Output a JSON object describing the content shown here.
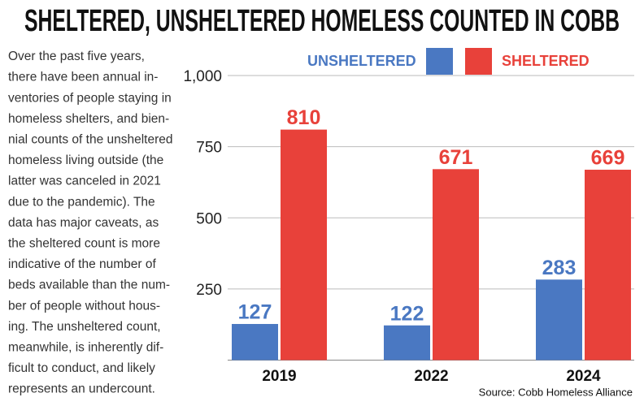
{
  "chart_data": {
    "type": "bar",
    "title": "SHELTERED, UNSHELTERED HOMELESS COUNTED IN COBB",
    "description": [
      "Over the past five years,",
      "there have been annual in-",
      "ventories of people staying in",
      "homeless shelters, and bien-",
      "nial counts of the unsheltered",
      "homeless living outside (the",
      "latter was canceled in 2021",
      "due to the pandemic). The",
      "data has major caveats, as",
      "the sheltered count is more",
      "indicative of the number of",
      "beds available than the num-",
      "ber of people without hous-",
      "ing. The unsheltered count,",
      "meanwhile, is inherently dif-",
      "ficult to conduct, and likely",
      "represents an undercount."
    ],
    "source": "Source: Cobb Homeless Alliance",
    "categories": [
      "2019",
      "2022",
      "2024"
    ],
    "series": [
      {
        "name": "UNSHELTERED",
        "color": "#4a78c2",
        "values": [
          127,
          122,
          283
        ]
      },
      {
        "name": "SHELTERED",
        "color": "#e8413a",
        "values": [
          810,
          671,
          669
        ]
      }
    ],
    "ylim": [
      0,
      1000
    ],
    "yticks": [
      250,
      500,
      750,
      {
        "value": 1000,
        "label": "1,000"
      }
    ],
    "grid": true
  }
}
